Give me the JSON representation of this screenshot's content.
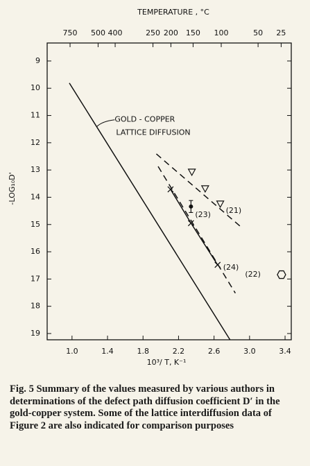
{
  "chart_data": {
    "type": "line",
    "top_axis_label": "TEMPERATURE , °C",
    "xlabel": "10³/ T, K⁻¹",
    "ylabel": "-LOG₁₀D'",
    "xlim": [
      0.72,
      3.47
    ],
    "ylim": [
      8.34,
      19.23
    ],
    "y_inverted": true,
    "xticks": [
      {
        "value": 1.0,
        "label": "1.0"
      },
      1.4,
      1.8,
      2.2,
      2.6,
      {
        "value": 3.0,
        "label": "3.0"
      },
      3.4
    ],
    "yticks": [
      9,
      10,
      11,
      12,
      13,
      14,
      15,
      16,
      17,
      18,
      19
    ],
    "top_ticks": [
      {
        "value": 0.978,
        "label": "750"
      },
      {
        "value": 1.294,
        "label": "500"
      },
      {
        "value": 1.486,
        "label": "400"
      },
      {
        "value": 1.912,
        "label": "250"
      },
      {
        "value": 2.114,
        "label": "200"
      },
      {
        "value": 2.364,
        "label": "150"
      },
      {
        "value": 2.681,
        "label": "100"
      },
      {
        "value": 3.096,
        "label": "50"
      },
      {
        "value": 3.356,
        "label": "25"
      }
    ],
    "series": [
      {
        "label_lines": [
          "GOLD - COPPER",
          "LATTICE DIFFUSION"
        ],
        "color": "#111111",
        "x": [
          0.97,
          2.78
        ],
        "values": [
          9.81,
          19.23
        ],
        "marker": "none",
        "line": "solid"
      },
      {
        "name": "(21)",
        "color": "#111111",
        "x": [
          2.35,
          2.5,
          2.67
        ],
        "values": [
          13.07,
          13.68,
          14.24
        ],
        "marker": "triangle",
        "line": "none",
        "fit": {
          "x": [
            1.95,
            2.9
          ],
          "values": [
            12.41,
            15.08
          ]
        }
      },
      {
        "name": "(22)",
        "color": "#111111",
        "x": [
          3.36
        ],
        "values": [
          16.84
        ],
        "marker": "hexagon",
        "line": "none"
      },
      {
        "name": "(23)",
        "color": "#111111",
        "x": [
          2.34
        ],
        "values": [
          14.34
        ],
        "errors": [
          0.22
        ],
        "marker": "circle",
        "line": "none"
      },
      {
        "name": "(24)",
        "color": "#111111",
        "x": [
          2.11,
          2.34,
          2.64
        ],
        "values": [
          13.71,
          14.95,
          16.48
        ],
        "marker": "cross",
        "line": "solid",
        "fit": {
          "x": [
            1.97,
            2.84
          ],
          "values": [
            12.87,
            17.52
          ]
        }
      }
    ]
  },
  "caption": "Fig. 5 Summary of the values measured by various authors in determinations of the defect path diffusion coefficient D′ in the gold-copper system. Some of the lattice interdiffusion data of Figure 2 are also indicated for comparison purposes"
}
